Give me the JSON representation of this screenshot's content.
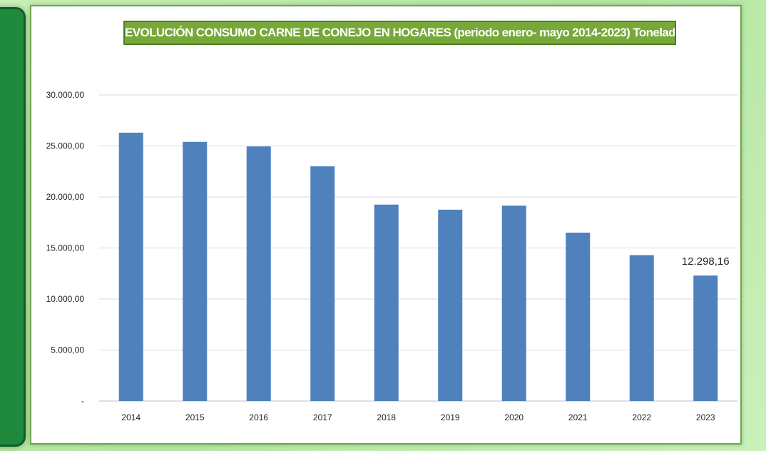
{
  "chart_data": {
    "type": "bar",
    "title": "EVOLUCIÓN CONSUMO CARNE DE CONEJO EN HOGARES (periodo enero- mayo 2014-2023) Toneladas",
    "categories": [
      "2014",
      "2015",
      "2016",
      "2017",
      "2018",
      "2019",
      "2020",
      "2021",
      "2022",
      "2023"
    ],
    "values": [
      26300,
      25400,
      24950,
      23000,
      19250,
      18750,
      19150,
      16500,
      14300,
      12298.16
    ],
    "ylim": [
      0,
      30000
    ],
    "yticks": [
      {
        "value": 0,
        "label": "-"
      },
      {
        "value": 5000,
        "label": "5.000,00"
      },
      {
        "value": 10000,
        "label": "10.000,00"
      },
      {
        "value": 15000,
        "label": "15.000,00"
      },
      {
        "value": 20000,
        "label": "20.000,00"
      },
      {
        "value": 25000,
        "label": "25.000,00"
      },
      {
        "value": 30000,
        "label": "30.000,00"
      }
    ],
    "data_labels": [
      {
        "index": 9,
        "text": "12.298,16"
      }
    ],
    "grid": true,
    "bar_color": "#4f81bd",
    "xlabel": "",
    "ylabel": ""
  }
}
